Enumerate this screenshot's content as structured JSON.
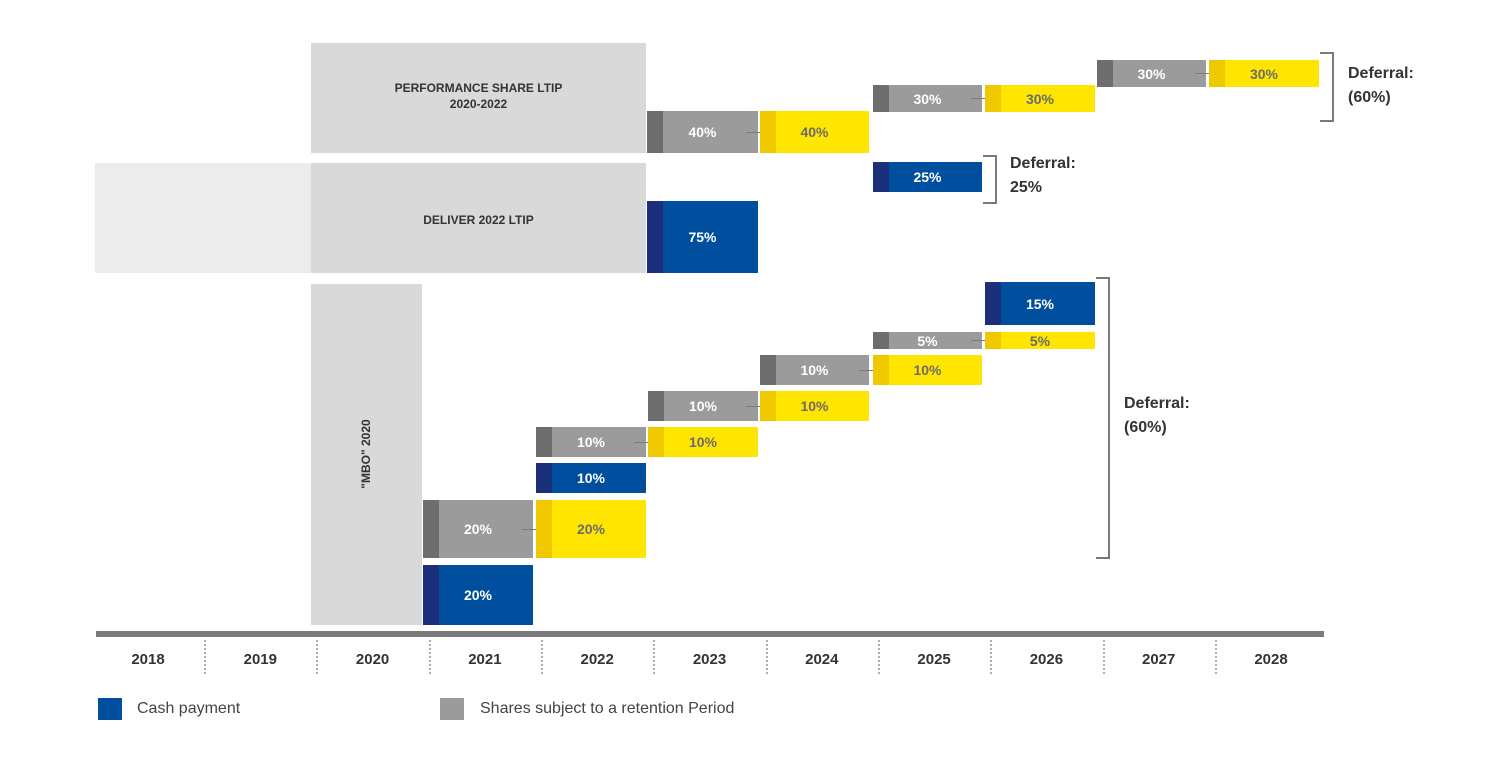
{
  "plans": {
    "performance_share_ltip": "PERFORMANCE SHARE LTIP\n2020-2022",
    "deliver_2022_ltip": "DELIVER 2022 LTIP",
    "mbo_2020": "\"MBO\" 2020"
  },
  "years": [
    "2018",
    "2019",
    "2020",
    "2021",
    "2022",
    "2023",
    "2024",
    "2025",
    "2026",
    "2027",
    "2028"
  ],
  "blocks": {
    "psl_2023_share": "40%",
    "psl_2024_yellow": "40%",
    "psl_2025_share": "30%",
    "psl_2026_yellow": "30%",
    "psl_2027_share": "30%",
    "psl_2028_yellow": "30%",
    "d22_2023_cash": "75%",
    "d22_2025_cash": "25%",
    "mbo_2021_cash": "20%",
    "mbo_2021_share": "20%",
    "mbo_2022_yellow_20": "20%",
    "mbo_2022_cash": "10%",
    "mbo_2022_share": "10%",
    "mbo_2023_yellow_a": "10%",
    "mbo_2023_share": "10%",
    "mbo_2024_yellow": "10%",
    "mbo_2024_share": "10%",
    "mbo_2025_yellow": "10%",
    "mbo_2025_share": "5%",
    "mbo_2026_yellow": "5%",
    "mbo_2026_cash": "15%"
  },
  "notes": {
    "psl_deferral": "Deferral:\n(60%)",
    "d22_deferral": "Deferral:\n25%",
    "mbo_deferral": "Deferral:\n(60%)"
  },
  "legend": {
    "cash": "Cash payment",
    "shares": "Shares subject to a retention Period"
  },
  "colors": {
    "cash": "#004f9f",
    "shares": "#9b9b9b",
    "yellow": "#ffe600",
    "plan": "#d9d9d9"
  }
}
